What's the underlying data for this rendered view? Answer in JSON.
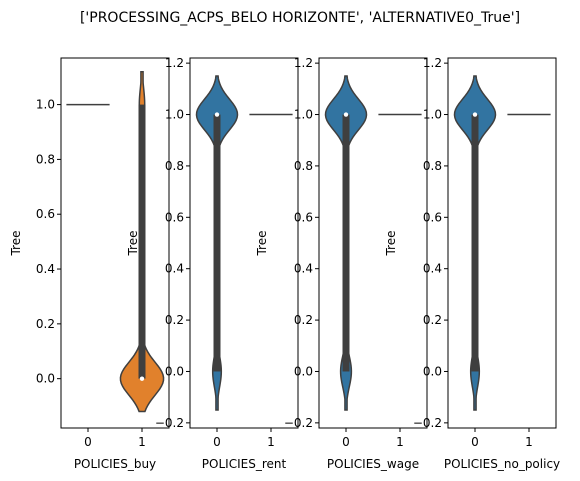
{
  "chart_data": {
    "type": "violin",
    "title": "['PROCESSING_ACPS_BELO HORIZONTE', 'ALTERNATIVE0_True']",
    "ylabel": "Tree",
    "colors": {
      "blue": "#3274a1",
      "orange": "#e1812c",
      "edge": "#3f3f3f"
    },
    "panels": [
      {
        "xlabel": "POLICIES_buy",
        "categories": [
          "0",
          "1"
        ],
        "ylim": [
          -0.18,
          1.17
        ],
        "yticks": [
          "0.0",
          "0.2",
          "0.4",
          "0.6",
          "0.8",
          "1.0"
        ],
        "ytick_values": [
          0.0,
          0.2,
          0.4,
          0.6,
          0.8,
          1.0
        ],
        "violins": [
          {
            "category": "0",
            "kind": "constant",
            "value": 1.0,
            "color": "blue"
          },
          {
            "category": "1",
            "kind": "bimodal",
            "low_mode": 0.0,
            "high_mode": 1.0,
            "min": -0.12,
            "max": 1.12,
            "low_half_width": 0.4,
            "high_half_width": 0.05,
            "median": 0.0,
            "color": "orange"
          }
        ]
      },
      {
        "xlabel": "POLICIES_rent",
        "categories": [
          "0",
          "1"
        ],
        "ylim": [
          -0.22,
          1.22
        ],
        "yticks": [
          "−0.2",
          "0.0",
          "0.2",
          "0.4",
          "0.6",
          "0.8",
          "1.0",
          "1.2"
        ],
        "ytick_values": [
          -0.2,
          0.0,
          0.2,
          0.4,
          0.6,
          0.8,
          1.0,
          1.2
        ],
        "violins": [
          {
            "category": "0",
            "kind": "bimodal",
            "low_mode": 0.0,
            "high_mode": 1.0,
            "min": -0.15,
            "max": 1.15,
            "low_half_width": 0.08,
            "high_half_width": 0.38,
            "median": 1.0,
            "color": "blue"
          },
          {
            "category": "1",
            "kind": "constant",
            "value": 1.0,
            "color": "blue"
          }
        ]
      },
      {
        "xlabel": "POLICIES_wage",
        "categories": [
          "0",
          "1"
        ],
        "ylim": [
          -0.22,
          1.22
        ],
        "yticks": [
          "−0.2",
          "0.0",
          "0.2",
          "0.4",
          "0.6",
          "0.8",
          "1.0",
          "1.2"
        ],
        "ytick_values": [
          -0.2,
          0.0,
          0.2,
          0.4,
          0.6,
          0.8,
          1.0,
          1.2
        ],
        "violins": [
          {
            "category": "0",
            "kind": "bimodal",
            "low_mode": 0.0,
            "high_mode": 1.0,
            "min": -0.15,
            "max": 1.15,
            "low_half_width": 0.1,
            "high_half_width": 0.38,
            "median": 1.0,
            "color": "blue"
          },
          {
            "category": "1",
            "kind": "constant",
            "value": 1.0,
            "color": "blue"
          }
        ]
      },
      {
        "xlabel": "POLICIES_no_policy",
        "categories": [
          "0",
          "1"
        ],
        "ylim": [
          -0.22,
          1.22
        ],
        "yticks": [
          "−0.2",
          "0.0",
          "0.2",
          "0.4",
          "0.6",
          "0.8",
          "1.0",
          "1.2"
        ],
        "ytick_values": [
          -0.2,
          0.0,
          0.2,
          0.4,
          0.6,
          0.8,
          1.0,
          1.2
        ],
        "violins": [
          {
            "category": "0",
            "kind": "bimodal",
            "low_mode": 0.0,
            "high_mode": 1.0,
            "min": -0.15,
            "max": 1.15,
            "low_half_width": 0.08,
            "high_half_width": 0.38,
            "median": 1.0,
            "color": "blue"
          },
          {
            "category": "1",
            "kind": "constant",
            "value": 1.0,
            "color": "blue"
          }
        ]
      }
    ]
  }
}
